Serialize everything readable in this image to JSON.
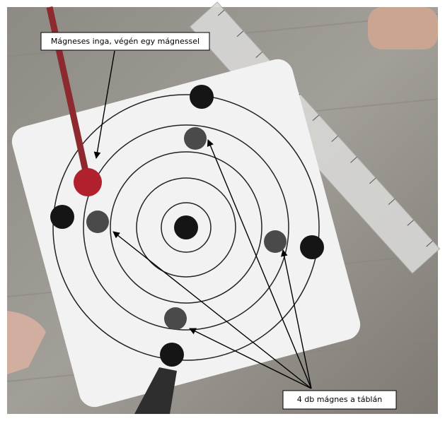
{
  "annotations": {
    "pendulum": "Mágneses inga, végén egy mágnessel",
    "magnets": "4 db mágnes a táblán"
  }
}
